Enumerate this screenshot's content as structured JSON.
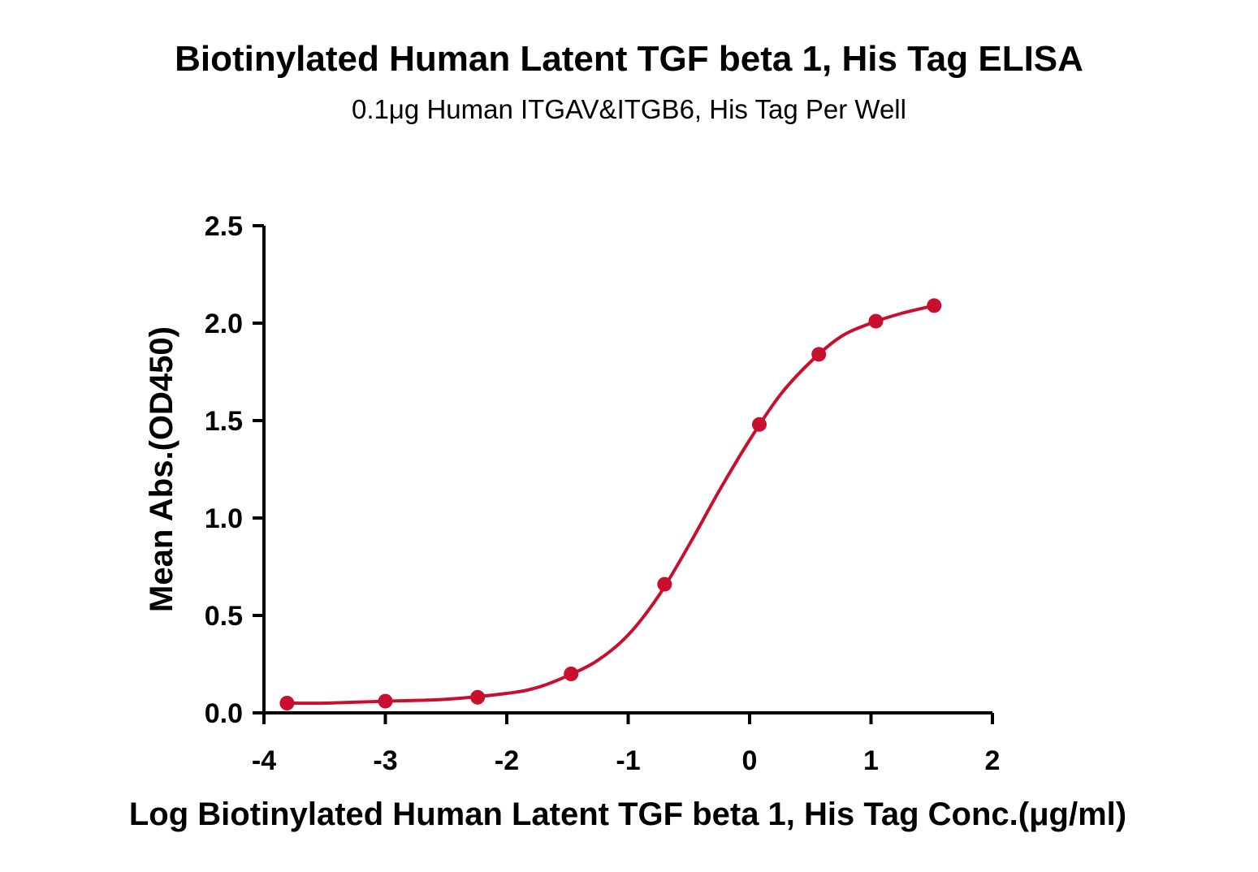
{
  "chart_data": {
    "type": "line",
    "title": "Biotinylated Human Latent TGF beta 1, His Tag ELISA",
    "subtitle": "0.1μg Human ITGAV&ITGB6, His Tag Per Well",
    "xlabel": "Log Biotinylated Human Latent TGF beta 1, His Tag Conc.(μg/ml)",
    "ylabel": "Mean Abs.(OD450)",
    "xlim": [
      -4,
      2
    ],
    "ylim": [
      0,
      2.5
    ],
    "x_ticks": [
      -4,
      -3,
      -2,
      -1,
      0,
      1,
      2
    ],
    "x_tick_labels": [
      "-4",
      "-3",
      "-2",
      "-1",
      "0",
      "1",
      "2"
    ],
    "y_ticks": [
      0,
      0.5,
      1.0,
      1.5,
      2.0,
      2.5
    ],
    "y_tick_labels": [
      "0.0",
      "0.5",
      "1.0",
      "1.5",
      "2.0",
      "2.5"
    ],
    "grid": false,
    "series": [
      {
        "color": "#c8102e",
        "x": [
          -3.81,
          -3.0,
          -2.24,
          -1.47,
          -0.7,
          0.08,
          0.57,
          1.04,
          1.52
        ],
        "y": [
          0.05,
          0.06,
          0.08,
          0.2,
          0.66,
          1.48,
          1.84,
          2.01,
          2.09
        ],
        "fit_curve": {
          "x": [
            -3.81,
            -3.5,
            -3.0,
            -2.5,
            -2.0,
            -1.75,
            -1.5,
            -1.25,
            -1.0,
            -0.75,
            -0.5,
            -0.25,
            0.0,
            0.25,
            0.5,
            0.75,
            1.0,
            1.25,
            1.52
          ],
          "y": [
            0.05,
            0.05,
            0.06,
            0.07,
            0.1,
            0.13,
            0.19,
            0.27,
            0.4,
            0.6,
            0.86,
            1.14,
            1.4,
            1.63,
            1.8,
            1.93,
            2.0,
            2.05,
            2.09
          ]
        }
      }
    ]
  }
}
